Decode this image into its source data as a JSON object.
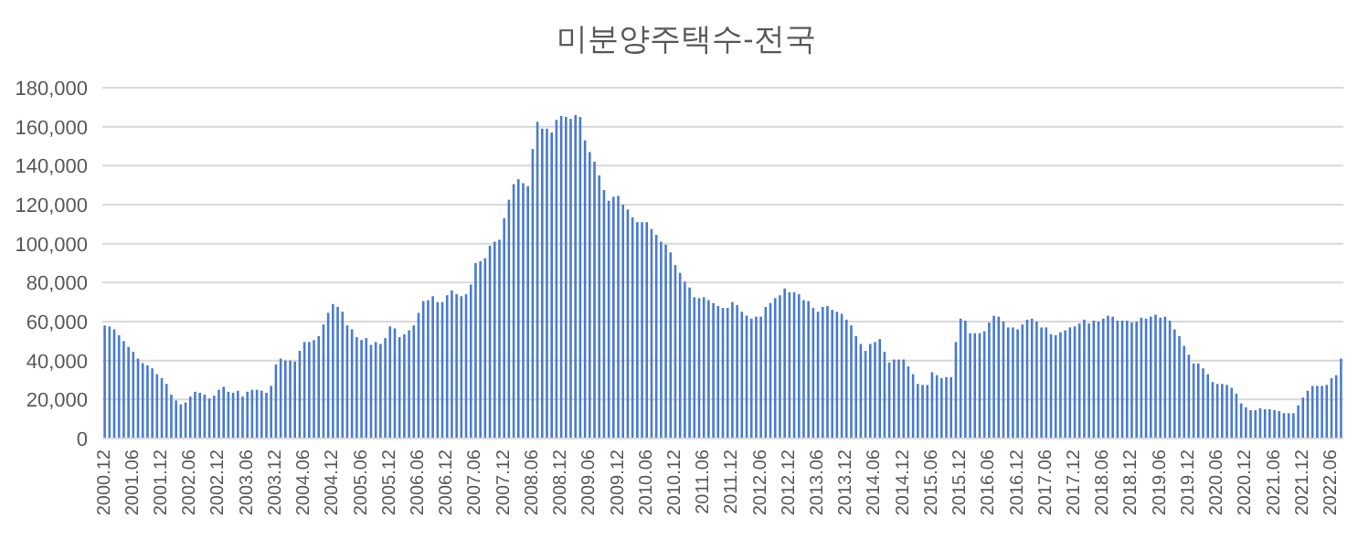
{
  "chart_data": {
    "type": "bar",
    "title": "미분양주택수-전국",
    "color": "#4a7bd0",
    "grid": "y",
    "ylim": [
      0,
      180000
    ],
    "yticks": [
      0,
      {
        "value": 20000,
        "label": "20,000"
      },
      {
        "value": 40000,
        "label": "40,000"
      },
      {
        "value": 60000,
        "label": "60,000"
      },
      {
        "value": 80000,
        "label": "80,000"
      },
      {
        "value": 100000,
        "label": "100,000"
      },
      {
        "value": 120000,
        "label": "120,000"
      },
      {
        "value": 140000,
        "label": "140,000"
      },
      {
        "value": 160000,
        "label": "160,000"
      },
      {
        "value": 180000,
        "label": "180,000"
      }
    ],
    "categories": [
      "2000.12",
      null,
      null,
      null,
      null,
      null,
      "2001.06",
      null,
      null,
      null,
      null,
      null,
      "2001.12",
      null,
      null,
      null,
      null,
      null,
      "2002.06",
      null,
      null,
      null,
      null,
      null,
      "2002.12",
      null,
      null,
      null,
      null,
      null,
      "2003.06",
      null,
      null,
      null,
      null,
      null,
      "2003.12",
      null,
      null,
      null,
      null,
      null,
      "2004.06",
      null,
      null,
      null,
      null,
      null,
      "2004.12",
      null,
      null,
      null,
      null,
      null,
      "2005.06",
      null,
      null,
      null,
      null,
      null,
      "2005.12",
      null,
      null,
      null,
      null,
      null,
      "2006.06",
      null,
      null,
      null,
      null,
      null,
      "2006.12",
      null,
      null,
      null,
      null,
      null,
      "2007.06",
      null,
      null,
      null,
      null,
      null,
      "2007.12",
      null,
      null,
      null,
      null,
      null,
      "2008.06",
      null,
      null,
      null,
      null,
      null,
      "2008.12",
      null,
      null,
      null,
      null,
      null,
      "2009.06",
      null,
      null,
      null,
      null,
      null,
      "2009.12",
      null,
      null,
      null,
      null,
      null,
      "2010.06",
      null,
      null,
      null,
      null,
      null,
      "2010.12",
      null,
      null,
      null,
      null,
      null,
      "2011.06",
      null,
      null,
      null,
      null,
      null,
      "2011.12",
      null,
      null,
      null,
      null,
      null,
      "2012.06",
      null,
      null,
      null,
      null,
      null,
      "2012.12",
      null,
      null,
      null,
      null,
      null,
      "2013.06",
      null,
      null,
      null,
      null,
      null,
      "2013.12",
      null,
      null,
      null,
      null,
      null,
      "2014.06",
      null,
      null,
      null,
      null,
      null,
      "2014.12",
      null,
      null,
      null,
      null,
      null,
      "2015.06",
      null,
      null,
      null,
      null,
      null,
      "2015.12",
      null,
      null,
      null,
      null,
      null,
      "2016.06",
      null,
      null,
      null,
      null,
      null,
      "2016.12",
      null,
      null,
      null,
      null,
      null,
      "2017.06",
      null,
      null,
      null,
      null,
      null,
      "2017.12",
      null,
      null,
      null,
      null,
      null,
      "2018.06",
      null,
      null,
      null,
      null,
      null,
      "2018.12",
      null,
      null,
      null,
      null,
      null,
      "2019.06",
      null,
      null,
      null,
      null,
      null,
      "2019.12",
      null,
      null,
      null,
      null,
      null,
      "2020.06",
      null,
      null,
      null,
      null,
      null,
      "2020.12",
      null,
      null,
      null,
      null,
      null,
      "2021.06",
      null,
      null,
      null,
      null,
      null,
      "2021.12",
      null,
      null,
      null,
      null,
      null,
      "2022.06",
      null,
      null
    ],
    "values": [
      58000,
      57500,
      56000,
      53000,
      50000,
      47000,
      44500,
      41000,
      38700,
      37500,
      36000,
      33000,
      31000,
      28000,
      22500,
      19500,
      17500,
      18500,
      21500,
      24000,
      23500,
      22500,
      20500,
      22000,
      25000,
      26500,
      24000,
      23500,
      24500,
      21500,
      24000,
      25000,
      25000,
      24500,
      23500,
      27000,
      38000,
      41000,
      40000,
      40000,
      39500,
      45000,
      49500,
      49500,
      50500,
      52500,
      58500,
      64500,
      69000,
      67500,
      65000,
      58000,
      56000,
      52000,
      50500,
      51500,
      48000,
      49500,
      48500,
      51500,
      57500,
      56500,
      52000,
      53500,
      55500,
      58000,
      64500,
      70500,
      71000,
      73000,
      70000,
      70000,
      73500,
      76000,
      74000,
      73000,
      74000,
      79000,
      90000,
      91000,
      92500,
      99000,
      101000,
      102000,
      113000,
      122500,
      130500,
      133000,
      131000,
      129500,
      148500,
      162500,
      159000,
      159000,
      157000,
      163500,
      165500,
      165000,
      164000,
      166000,
      165000,
      153000,
      147000,
      142000,
      135000,
      127500,
      122000,
      124000,
      124500,
      120000,
      117500,
      113500,
      111000,
      111000,
      111000,
      107500,
      104500,
      101000,
      99500,
      95500,
      89000,
      85000,
      80500,
      77500,
      72500,
      72000,
      72500,
      71000,
      69500,
      68000,
      67000,
      67000,
      70000,
      68500,
      65000,
      63000,
      61500,
      62500,
      62500,
      67500,
      69500,
      72000,
      73500,
      77000,
      75000,
      75000,
      74000,
      71000,
      70500,
      67000,
      65000,
      67500,
      68000,
      66000,
      65000,
      64000,
      61000,
      58000,
      52500,
      48500,
      45000,
      48500,
      49500,
      51000,
      44500,
      39000,
      40500,
      40500,
      40500,
      37000,
      33000,
      28000,
      27500,
      27500,
      34000,
      32500,
      31000,
      31500,
      31500,
      49500,
      61500,
      60500,
      54000,
      54000,
      54000,
      55000,
      59500,
      63000,
      62500,
      60000,
      57000,
      57000,
      56000,
      58500,
      61000,
      61500,
      60000,
      57000,
      57000,
      53500,
      53000,
      54500,
      55500,
      57000,
      57500,
      59000,
      61000,
      59000,
      60500,
      60000,
      61500,
      63000,
      62500,
      60500,
      60500,
      60500,
      59500,
      60000,
      62000,
      61500,
      62500,
      63500,
      62000,
      62500,
      60500,
      56000,
      52500,
      47500,
      43000,
      38500,
      38500,
      36000,
      33000,
      29000,
      28000,
      28000,
      27500,
      26000,
      23000,
      18000,
      16000,
      14500,
      14500,
      15500,
      15000,
      15000,
      14500,
      14000,
      13000,
      13000,
      13000,
      17000,
      21000,
      24500,
      27000,
      27000,
      27000,
      27500,
      31000,
      32500,
      41000
    ]
  }
}
